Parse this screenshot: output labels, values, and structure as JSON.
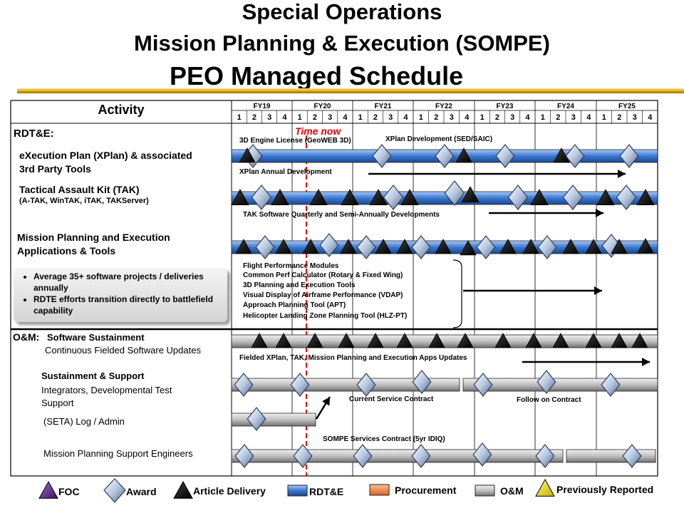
{
  "header": {
    "title_line1": "Special Operations",
    "title_line2": "Mission Planning & Execution (SOMPE)",
    "title_line3": "PEO Managed Schedule"
  },
  "grid": {
    "activity_header": "Activity",
    "fiscal_years": [
      "FY19",
      "FY20",
      "FY21",
      "FY22",
      "FY23",
      "FY24",
      "FY25"
    ],
    "quarters": [
      "1",
      "2",
      "3",
      "4"
    ]
  },
  "time_now_label": "Time now",
  "sections": {
    "rdte": "RDT&E:",
    "om": "O&M:",
    "om_sub": "Software Sustainment",
    "om_sub2": "Continuous Fielded Software Updates"
  },
  "activities": {
    "xplan_l1": "eXecution Plan (XPlan) & associated",
    "xplan_l2": "3rd Party Tools",
    "tak_l1": "Tactical Assault Kit (TAK)",
    "tak_l2": "(A-TAK, WinTAK, iTAK, TAKServer)",
    "mpe_l1": "Mission Planning and Execution",
    "mpe_l2": "Applications & Tools",
    "sust_l1": "Sustainment & Support",
    "sust_l2": "Integrators, Developmental Test",
    "sust_l3": "Support",
    "seta": "(SETA) Log / Admin",
    "mpse": "Mission Planning Support Engineers"
  },
  "bullets": [
    "Average 35+ software projects / deliveries annually",
    "RDTE efforts transition directly to battlefield capability"
  ],
  "annotations": {
    "engine": "3D Engine License (GeoWEB 3D)",
    "xplan_dev": "XPlan Development (SED/SAIC)",
    "xplan_annual": "XPlan Annual Development",
    "tak_dev": "TAK Software Quarterly and Semi-Annually Developments",
    "mpe_list": [
      "Flight Performance Modules",
      "Common Perf Calculator (Rotary & Fixed Wing)",
      "3D Planning and Execution Tools",
      "Visual Display of Airframe Performance (VDAP)",
      "Approach Planning Tool (APT)",
      "Helicopter Landing Zone Planning Tool (HLZ-PT)"
    ],
    "fielded": "Fielded XPlan, TAK, Mission Planning and Execution Apps Updates",
    "current_contract": "Current Service Contract",
    "follow_on": "Follow on  Contract",
    "sompe_services": "SOMPE Services Contract (5yr IDIQ)"
  },
  "legend": [
    {
      "symbol": "foc-triangle",
      "label": "FOC",
      "color": "#5a2a8a"
    },
    {
      "symbol": "award-diamond",
      "label": "Award",
      "color": "#b8c8e0"
    },
    {
      "symbol": "delivery-triangle",
      "label": "Article Delivery",
      "color": "#000000"
    },
    {
      "symbol": "rdte-box",
      "label": "RDT&E",
      "color": "#3a78d0"
    },
    {
      "symbol": "procurement-box",
      "label": "Procurement",
      "color": "#f08040"
    },
    {
      "symbol": "om-box",
      "label": "O&M",
      "color": "#b8b8b8"
    },
    {
      "symbol": "previously-reported-triangle",
      "label": "Previously Reported",
      "color": "#f0f000"
    }
  ],
  "colors": {
    "rdte": "#3a78d0",
    "om": "#b8b8b8",
    "time_now": "#e00000",
    "gold": "#d9a400"
  }
}
